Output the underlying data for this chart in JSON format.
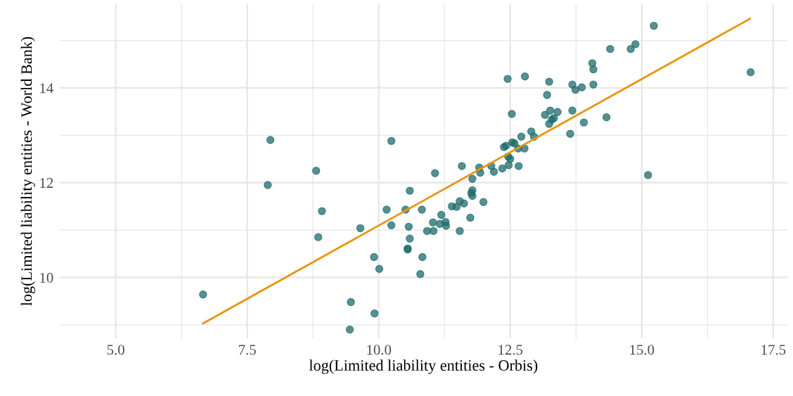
{
  "chart_data": {
    "type": "scatter",
    "xlabel": "log(Limited liability entities - Orbis)",
    "ylabel": "log(Limited liability entities - World Bank)",
    "xlim": [
      3.93,
      17.77
    ],
    "ylim": [
      8.71,
      15.77
    ],
    "xticks": [
      {
        "value": 5,
        "label": "5.0"
      },
      7.5,
      {
        "value": 10,
        "label": "10.0"
      },
      12.5,
      {
        "value": 15,
        "label": "15.0"
      },
      17.5
    ],
    "yticks": [
      10,
      12,
      14
    ],
    "grid": true,
    "series": [
      {
        "color": "#1d6b6b",
        "marker": "circle",
        "x": [
          6.66,
          7.94,
          7.89,
          8.81,
          8.85,
          8.92,
          9.65,
          9.47,
          9.45,
          9.92,
          9.91,
          10.24,
          11.07,
          11.58,
          10.59,
          10.15,
          10.51,
          10.82,
          10.24,
          10.57,
          10.59,
          10.55,
          10.55,
          10.83,
          10.79,
          10.01,
          10.92,
          11.04,
          11.03,
          11.19,
          11.16,
          11.27,
          11.28,
          11.39,
          11.48,
          11.54,
          11.62,
          11.54,
          11.74,
          11.99,
          11.78,
          11.78,
          11.76,
          11.78,
          11.91,
          11.93,
          12.14,
          12.19,
          12.35,
          12.47,
          12.46,
          12.5,
          12.66,
          12.38,
          12.42,
          12.54,
          12.58,
          12.65,
          12.77,
          12.71,
          12.9,
          12.95,
          12.53,
          15.23,
          14.88,
          14.79,
          14.4,
          14.06,
          14.08,
          14.08,
          13.68,
          13.74,
          13.86,
          13.24,
          12.78,
          12.45,
          13.2,
          13.16,
          13.26,
          13.4,
          13.68,
          13.33,
          13.29,
          13.24,
          13.9,
          14.33,
          13.64,
          17.07,
          15.12
        ],
        "values": [
          9.64,
          12.9,
          11.95,
          12.25,
          10.85,
          11.4,
          11.04,
          9.48,
          8.9,
          9.24,
          10.43,
          12.88,
          12.2,
          12.35,
          11.83,
          11.43,
          11.43,
          11.43,
          11.1,
          11.07,
          10.82,
          10.61,
          10.59,
          10.43,
          10.07,
          10.18,
          10.98,
          10.98,
          11.16,
          11.32,
          11.13,
          11.17,
          11.09,
          11.5,
          11.49,
          11.61,
          11.56,
          10.98,
          11.26,
          11.59,
          12.08,
          11.84,
          11.78,
          11.72,
          12.32,
          12.21,
          12.35,
          12.23,
          12.3,
          12.37,
          12.55,
          12.5,
          12.35,
          12.75,
          12.78,
          12.85,
          12.83,
          12.72,
          12.72,
          12.97,
          13.08,
          12.97,
          13.45,
          15.31,
          14.92,
          14.82,
          14.82,
          14.52,
          14.39,
          14.07,
          14.07,
          13.96,
          14.01,
          14.13,
          14.24,
          14.19,
          13.85,
          13.43,
          13.52,
          13.49,
          13.52,
          13.36,
          13.33,
          13.24,
          13.27,
          13.38,
          13.03,
          14.33,
          12.16
        ]
      },
      {
        "type": "line",
        "color": "#e8950e",
        "x": [
          6.66,
          17.06
        ],
        "values": [
          9.03,
          15.46
        ]
      }
    ]
  }
}
